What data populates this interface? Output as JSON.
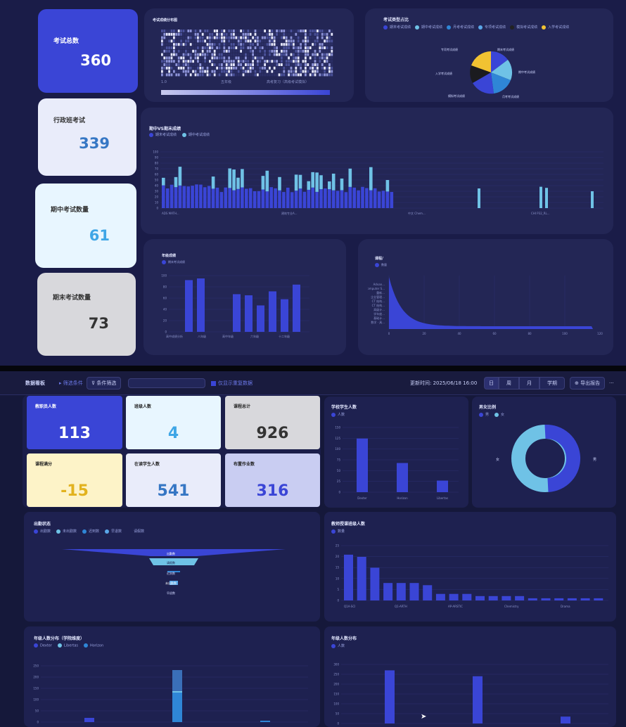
{
  "top_kpis": [
    {
      "label": "考试总数",
      "value": "360"
    },
    {
      "label": "行政班考试",
      "value": "339"
    },
    {
      "label": "期中考试数量",
      "value": "61"
    },
    {
      "label": "期末考试数量",
      "value": "73"
    }
  ],
  "heatmap": {
    "title": "考试成绩分布图",
    "xlabels": [
      "1.0",
      "五年级",
      "高考复习（高级考试模拟）"
    ]
  },
  "pie": {
    "title": "考试类型占比",
    "legend": [
      "期末考试成绩",
      "期中考试成绩",
      "月考考试成绩",
      "专项考试成绩",
      "模拟考试成绩",
      "入学考试成绩"
    ],
    "labels": [
      "期末考试成绩",
      "期中考试成绩",
      "月考考试成绩",
      "入学考试成绩",
      "专项考试成绩",
      "模拟考试成绩"
    ]
  },
  "mid_chart": {
    "title": "期中VS期末成绩",
    "legend": [
      "期末考试成绩",
      "期中考试成绩"
    ],
    "yticks": [
      "100",
      "90",
      "80",
      "70",
      "60",
      "50",
      "40",
      "30",
      "20",
      "10",
      "0"
    ],
    "xticks": [
      "ADS MATH...",
      "建筑专业A...",
      "中文 Chem...",
      "CHI P32_RL..."
    ]
  },
  "grade_chart": {
    "title": "年级成绩",
    "legend": [
      "期末考试成绩"
    ],
    "yticks": [
      "100",
      "80",
      "60",
      "40",
      "20",
      "0"
    ],
    "xticks": [
      "高中成绩分析",
      "八年级",
      "高中年级",
      "六年级",
      "十二年级"
    ]
  },
  "dist_chart": {
    "title": "课程/",
    "legend": [
      "数量"
    ],
    "ylabels": [
      "Advan...",
      "Computer S...",
      "重新...",
      "企业管理...",
      "CT 结构...",
      "CT 结构...",
      "高级计...",
      "学年度...",
      "基础计...",
      "数学 · 具..."
    ],
    "xticks": [
      "0",
      "20",
      "40",
      "60",
      "80",
      "100",
      "120"
    ]
  },
  "toolbar": {
    "title": "数据看板",
    "filter1": "筛选条件",
    "filter2": "条件筛选",
    "checkbox": "仅显示重复数据",
    "updated": "更新时间: 2025/06/18 16:00",
    "seg": [
      "日",
      "周",
      "月",
      "学期"
    ],
    "export": "导出报告",
    "more": "···"
  },
  "bot_kpis": [
    {
      "label": "教职员人数",
      "value": "113"
    },
    {
      "label": "班级人数",
      "value": "4"
    },
    {
      "label": "课程总计",
      "value": "926"
    },
    {
      "label": "课程满分",
      "value": "-15"
    },
    {
      "label": "在读学生人数",
      "value": "541"
    },
    {
      "label": "布置作业数",
      "value": "316"
    }
  ],
  "campus_chart": {
    "title": "学校学生人数",
    "legend": [
      "人数"
    ],
    "yticks": [
      "150",
      "125",
      "100",
      "75",
      "50",
      "25",
      "0"
    ],
    "xticks": [
      "Dexter",
      "Horizon",
      "Libertas"
    ]
  },
  "gender_chart": {
    "title": "男女比例",
    "legend": [
      "男",
      "女"
    ],
    "labels": [
      "男",
      "女"
    ]
  },
  "funnel_chart": {
    "title": "出勤状态",
    "legend": [
      "出勤数",
      "未出勤数",
      "迟到数",
      "早退数",
      "请假数"
    ],
    "labels": [
      "出勤数",
      "请假数",
      "迟到数",
      "未出勤数",
      "早退数"
    ]
  },
  "class_chart": {
    "title": "教师授课班级人数",
    "legend": [
      "数量"
    ],
    "yticks": [
      "25",
      "20",
      "15",
      "10",
      "5",
      "0"
    ],
    "xticks": [
      "Q1A-SCI",
      "Q1-ARTH",
      "AP-ARSTIC",
      "Chemistry",
      "Drama"
    ]
  },
  "grade_dist": {
    "title": "年级人数分布（学院维度）",
    "legend": [
      "Dexter",
      "Libertas",
      "Horizon"
    ],
    "yticks": [
      "250",
      "200",
      "150",
      "100",
      "50",
      "0"
    ]
  },
  "grade_dist2": {
    "title": "年级人数分布",
    "legend": [
      "人数"
    ],
    "yticks": [
      "300",
      "250",
      "200",
      "150",
      "100",
      "50",
      "0"
    ]
  },
  "colors": {
    "accent": "#3f4bd8",
    "light": "#6fc2e6",
    "yellow": "#f1c232",
    "navy": "#1a1c48"
  }
}
